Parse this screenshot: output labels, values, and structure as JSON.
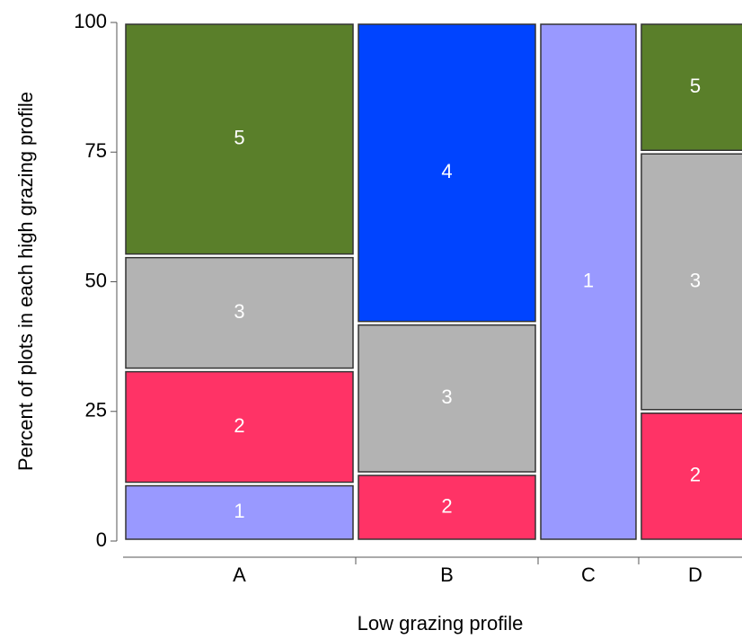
{
  "chart_data": {
    "type": "mosaic",
    "x_label": "Low grazing profile",
    "y_label": "Percent of plots in each high grazing profile",
    "categories": [
      "A",
      "B",
      "C",
      "D"
    ],
    "widths": [
      37,
      29,
      16,
      18
    ],
    "series": [
      {
        "name": "1",
        "color": "#9999ff",
        "values": [
          11,
          null,
          100,
          null
        ]
      },
      {
        "name": "2",
        "color": "#ff3366",
        "values": [
          22,
          13,
          null,
          25
        ]
      },
      {
        "name": "3",
        "color": "#b3b3b3",
        "values": [
          22,
          29,
          null,
          50
        ]
      },
      {
        "name": "4",
        "color": "#0044ff",
        "values": [
          null,
          58,
          null,
          null
        ]
      },
      {
        "name": "5",
        "color": "#5a7f2a",
        "values": [
          45,
          null,
          null,
          25
        ]
      }
    ],
    "ylim": [
      0,
      100
    ],
    "yticks": [
      0,
      25,
      50,
      75,
      100
    ]
  }
}
